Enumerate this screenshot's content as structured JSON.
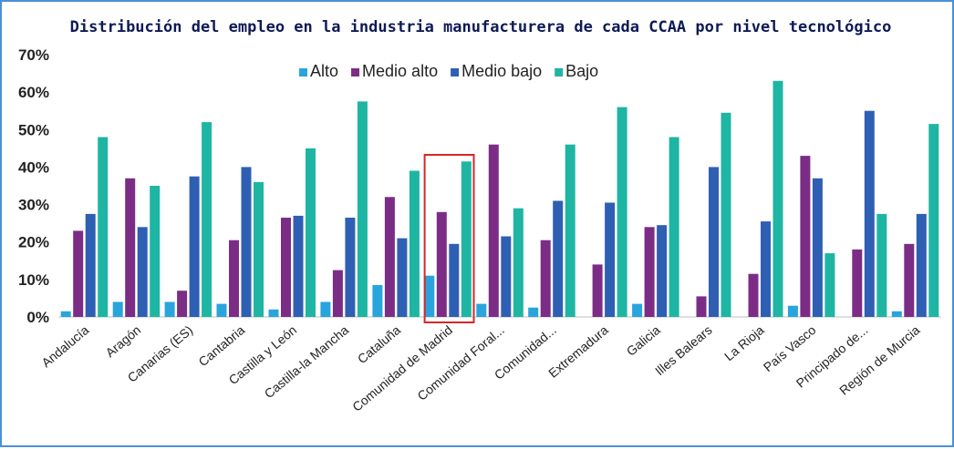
{
  "chart_data": {
    "type": "bar",
    "title": "Distribución del empleo en la industria manufacturera de cada CCAA por nivel tecnológico",
    "ylim": [
      0,
      70
    ],
    "yticks": [
      "0%",
      "10%",
      "20%",
      "30%",
      "40%",
      "50%",
      "60%",
      "70%"
    ],
    "grid": false,
    "legend_position": "top",
    "highlighted_category": "Comunidad de Madrid",
    "highlight_color": "#d62728",
    "categories": [
      "Andalucía",
      "Aragón",
      "Canarias (ES)",
      "Cantabria",
      "Castilla y León",
      "Castilla-la Mancha",
      "Cataluña",
      "Comunidad de Madrid",
      "Comunidad Foral...",
      "Comunidad...",
      "Extremadura",
      "Galicia",
      "Illes Balears",
      "La Rioja",
      "País Vasco",
      "Principado de...",
      "Región de Murcia"
    ],
    "series": [
      {
        "name": "Alto",
        "color": "#2aa4dc",
        "values": [
          1.5,
          4,
          4,
          3.5,
          2,
          4,
          8.5,
          11,
          3.5,
          2.5,
          0,
          3.5,
          0,
          0,
          3,
          0,
          1.5
        ]
      },
      {
        "name": "Medio alto",
        "color": "#7b2d86",
        "values": [
          23,
          37,
          7,
          20.5,
          26.5,
          12.5,
          32,
          28,
          46,
          20.5,
          14,
          24,
          5.5,
          11.5,
          43,
          18,
          19.5
        ]
      },
      {
        "name": "Medio bajo",
        "color": "#2f5fb3",
        "values": [
          27.5,
          24,
          37.5,
          40,
          27,
          26.5,
          21,
          19.5,
          21.5,
          31,
          30.5,
          24.5,
          40,
          25.5,
          37,
          55,
          27.5
        ]
      },
      {
        "name": "Bajo",
        "color": "#1fb5a3",
        "values": [
          48,
          35,
          52,
          36,
          45,
          57.5,
          39,
          41.5,
          29,
          46,
          56,
          48,
          54.5,
          63,
          17,
          27.5,
          51.5
        ]
      }
    ]
  }
}
